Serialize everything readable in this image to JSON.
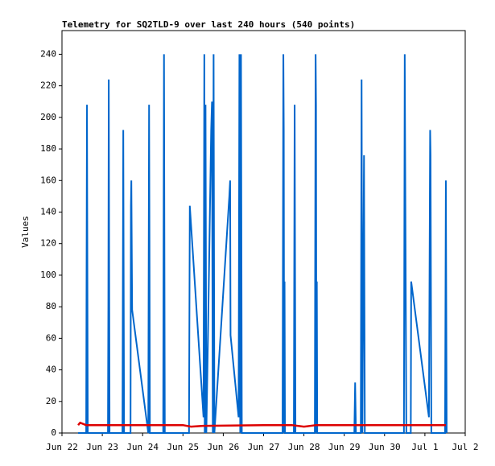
{
  "chart_data": {
    "type": "line",
    "title": "Telemetry for SQ2TLD-9 over last 240 hours (540 points)",
    "y_label": "Values",
    "xlim": [
      0,
      10
    ],
    "ylim": [
      0,
      255
    ],
    "xticks": [
      {
        "value": 0,
        "label": "Jun 22"
      },
      {
        "value": 1,
        "label": "Jun 23"
      },
      {
        "value": 2,
        "label": "Jun 24"
      },
      {
        "value": 3,
        "label": "Jun 25"
      },
      {
        "value": 4,
        "label": "Jun 26"
      },
      {
        "value": 5,
        "label": "Jun 27"
      },
      {
        "value": 6,
        "label": "Jun 28"
      },
      {
        "value": 7,
        "label": "Jun 29"
      },
      {
        "value": 8,
        "label": "Jun 30"
      },
      {
        "value": 9,
        "label": "Jul 1"
      },
      {
        "value": 10,
        "label": "Jul 2"
      }
    ],
    "yticks": [
      0,
      20,
      40,
      60,
      80,
      100,
      120,
      140,
      160,
      180,
      200,
      220,
      240
    ],
    "series": [
      {
        "color": "#0066cc",
        "x": [
          0.4,
          0.6,
          0.62,
          0.64,
          1.14,
          1.15,
          1.16,
          1.18,
          1.5,
          1.52,
          1.54,
          1.7,
          1.71,
          1.72,
          1.74,
          2.14,
          2.16,
          2.17,
          2.18,
          2.51,
          2.52,
          2.53,
          2.55,
          3.15,
          3.17,
          3.51,
          3.53,
          3.54,
          3.56,
          3.58,
          3.62,
          3.7,
          3.72,
          3.74,
          3.76,
          3.78,
          4.15,
          4.17,
          4.18,
          4.38,
          4.4,
          4.42,
          4.44,
          4.46,
          5.47,
          5.49,
          5.5,
          5.51,
          5.52,
          5.53,
          5.75,
          5.77,
          5.79,
          6.27,
          6.29,
          6.3,
          6.31,
          6.32,
          6.33,
          7.25,
          7.27,
          7.29,
          7.41,
          7.43,
          7.45,
          7.49,
          7.51,
          8.48,
          8.5,
          8.52,
          8.54,
          8.65,
          8.66,
          9.1,
          9.13,
          9.14,
          9.16,
          9.5,
          9.52,
          9.54
        ],
        "values": [
          0,
          0,
          208,
          0,
          0,
          80,
          224,
          0,
          0,
          192,
          0,
          0,
          144,
          160,
          78,
          0,
          208,
          120,
          0,
          0,
          128,
          240,
          0,
          0,
          144,
          10,
          240,
          0,
          208,
          0,
          60,
          192,
          210,
          0,
          240,
          0,
          150,
          160,
          62,
          10,
          240,
          0,
          240,
          0,
          0,
          240,
          192,
          0,
          96,
          0,
          0,
          208,
          0,
          0,
          240,
          208,
          0,
          96,
          0,
          0,
          32,
          0,
          0,
          224,
          0,
          176,
          0,
          0,
          240,
          120,
          0,
          0,
          96,
          10,
          192,
          176,
          0,
          0,
          160,
          0
        ]
      },
      {
        "color": "#dd0000",
        "x": [
          0.4,
          0.45,
          0.6,
          3.0,
          3.2,
          3.5,
          5.0,
          5.7,
          6.0,
          6.3,
          9.52
        ],
        "values": [
          5,
          6.5,
          5,
          5,
          4,
          4.5,
          5,
          5,
          4,
          5,
          5
        ]
      }
    ]
  }
}
